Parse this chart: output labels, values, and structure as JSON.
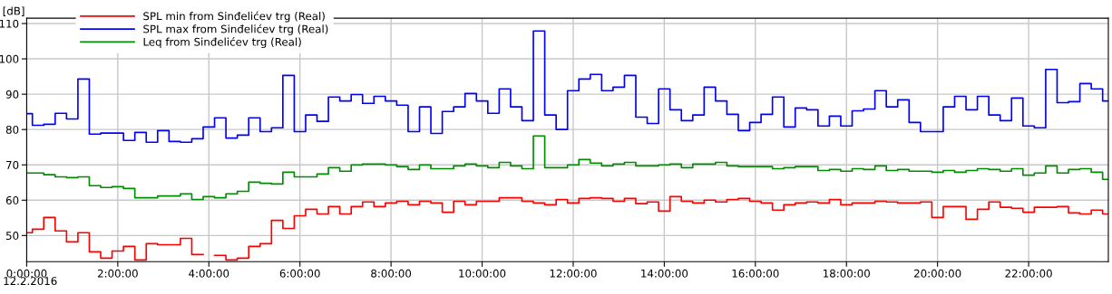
{
  "chart_data": {
    "type": "step",
    "xlabel": "12.2.2016",
    "ylabel": "[dB]",
    "x": [
      0,
      0.25,
      0.5,
      0.75,
      1,
      1.25,
      1.5,
      1.75,
      2,
      2.25,
      2.5,
      2.75,
      3,
      3.25,
      3.5,
      3.75,
      4,
      4.25,
      4.5,
      4.75,
      5,
      5.25,
      5.5,
      5.75,
      6,
      6.25,
      6.5,
      6.75,
      7,
      7.25,
      7.5,
      7.75,
      8,
      8.25,
      8.5,
      8.75,
      9,
      9.25,
      9.5,
      9.75,
      10,
      10.25,
      10.5,
      10.75,
      11,
      11.25,
      11.5,
      11.75,
      12,
      12.25,
      12.5,
      12.75,
      13,
      13.25,
      13.5,
      13.75,
      14,
      14.25,
      14.5,
      14.75,
      15,
      15.25,
      15.5,
      15.75,
      16,
      16.25,
      16.5,
      16.75,
      17,
      17.25,
      17.5,
      17.75,
      18,
      18.25,
      18.5,
      18.75,
      19,
      19.25,
      19.5,
      19.75,
      20,
      20.25,
      20.5,
      20.75,
      21,
      21.25,
      21.5,
      21.75,
      22,
      22.25,
      22.5,
      22.75,
      23,
      23.25,
      23.5,
      23.75
    ],
    "series": [
      {
        "name": "SPL min from Sinđelićev trg (Real)",
        "color": "#ff0000",
        "values": [
          50.8,
          51.8,
          55.1,
          51.3,
          48.2,
          50.8,
          45.4,
          43.6,
          45.6,
          46.9,
          43.1,
          47.7,
          47.4,
          47.4,
          49.2,
          44.6,
          null,
          44.4,
          43.1,
          43.6,
          46.9,
          47.7,
          54.3,
          52,
          55.6,
          57.4,
          56.1,
          58.2,
          56.1,
          58.2,
          59.5,
          58.2,
          59.2,
          59.7,
          58.7,
          59.7,
          59.2,
          56.6,
          59.7,
          58.7,
          59.7,
          59.7,
          60.7,
          60.7,
          59.7,
          59.2,
          58.7,
          60.2,
          59.2,
          60.5,
          60.7,
          60.5,
          59.7,
          60.5,
          59,
          59.5,
          56.9,
          61,
          59.7,
          59.2,
          60,
          59.5,
          60.2,
          60.5,
          59.7,
          59.2,
          57.2,
          58.7,
          59.2,
          59.5,
          59.2,
          60.2,
          58.7,
          59.2,
          59.2,
          59.7,
          59.5,
          59.2,
          59.2,
          59.5,
          55.1,
          58.2,
          58.2,
          54.6,
          57.4,
          59.5,
          58,
          57.7,
          56.6,
          58,
          58,
          58.2,
          56.4,
          56.1,
          57.2,
          56.1
        ]
      },
      {
        "name": "SPL max from Sinđelićev trg (Real)",
        "color": "#0000ff",
        "values": [
          84.5,
          81.2,
          81.5,
          84.6,
          83,
          94.3,
          78.7,
          79,
          79,
          76.9,
          79.2,
          76.4,
          79.7,
          76.6,
          76.4,
          77.4,
          80.7,
          83.3,
          77.6,
          78.4,
          83.3,
          79.4,
          80.5,
          95.3,
          79.4,
          84.1,
          82.3,
          89.2,
          88.1,
          89.9,
          87.4,
          89.4,
          88.1,
          86.9,
          79.4,
          86.4,
          78.9,
          85.1,
          86.4,
          90.2,
          88.1,
          84.6,
          91.5,
          86.4,
          82.5,
          107.9,
          84.1,
          80,
          91,
          94.3,
          95.6,
          91,
          92,
          95.3,
          83.5,
          81.7,
          91.5,
          85.6,
          82.5,
          84.1,
          92,
          88.1,
          84.3,
          79.7,
          82,
          84.3,
          89.2,
          80.7,
          86.1,
          85.6,
          81,
          83.8,
          81,
          85.3,
          85.8,
          91,
          86.4,
          88.4,
          82,
          79.4,
          79.4,
          86.4,
          89.4,
          85.6,
          89.4,
          84.1,
          82.5,
          88.9,
          81,
          80.5,
          97,
          87.6,
          87.9,
          93,
          91.5,
          88.1
        ]
      },
      {
        "name": "Leq from Sinđelićev trg (Real)",
        "color": "#008c00",
        "values": [
          67.7,
          67.7,
          67.2,
          66.6,
          66.4,
          66.6,
          64.1,
          63.6,
          63.8,
          63.3,
          60.7,
          60.7,
          61.2,
          61.2,
          61.8,
          60.2,
          61,
          60.7,
          61.8,
          62.5,
          65.1,
          64.8,
          64.6,
          67.9,
          66.6,
          66.6,
          67.4,
          69.2,
          68.2,
          70,
          70.2,
          70.2,
          70,
          69.5,
          68.7,
          70,
          68.9,
          68.9,
          69.7,
          70.2,
          69.7,
          69.2,
          70.7,
          69.7,
          68.9,
          78.2,
          69.2,
          69.2,
          70,
          71.5,
          70.5,
          69.7,
          70.2,
          70.7,
          69.7,
          69.7,
          70,
          70.2,
          69.2,
          70.2,
          70.2,
          70.7,
          69.7,
          69.5,
          69.5,
          69.5,
          68.9,
          69.2,
          69.5,
          69.5,
          68.4,
          68.7,
          68.2,
          68.9,
          68.7,
          69.7,
          68.4,
          68.7,
          68.2,
          68.2,
          67.9,
          68.4,
          67.9,
          68.4,
          68.9,
          68.7,
          68.2,
          68.9,
          67.1,
          67.7,
          69.7,
          67.7,
          68.7,
          68.9,
          67.9,
          65.9
        ]
      }
    ],
    "xlim": [
      0,
      23.75
    ],
    "ylim": [
      42.6,
      111.5
    ],
    "xticks": [
      {
        "value": 0,
        "label": "0:00:00"
      },
      {
        "value": 2,
        "label": "2:00:00"
      },
      {
        "value": 4,
        "label": "4:00:00"
      },
      {
        "value": 6,
        "label": "6:00:00"
      },
      {
        "value": 8,
        "label": "8:00:00"
      },
      {
        "value": 10,
        "label": "10:00:00"
      },
      {
        "value": 12,
        "label": "12:00:00"
      },
      {
        "value": 14,
        "label": "14:00:00"
      },
      {
        "value": 16,
        "label": "16:00:00"
      },
      {
        "value": 18,
        "label": "18:00:00"
      },
      {
        "value": 20,
        "label": "20:00:00"
      },
      {
        "value": 22,
        "label": "22:00:00"
      }
    ],
    "yticks": [
      50,
      60,
      70,
      80,
      90,
      100,
      110
    ],
    "grid": true,
    "legend": "top left",
    "line_style": "solid"
  }
}
